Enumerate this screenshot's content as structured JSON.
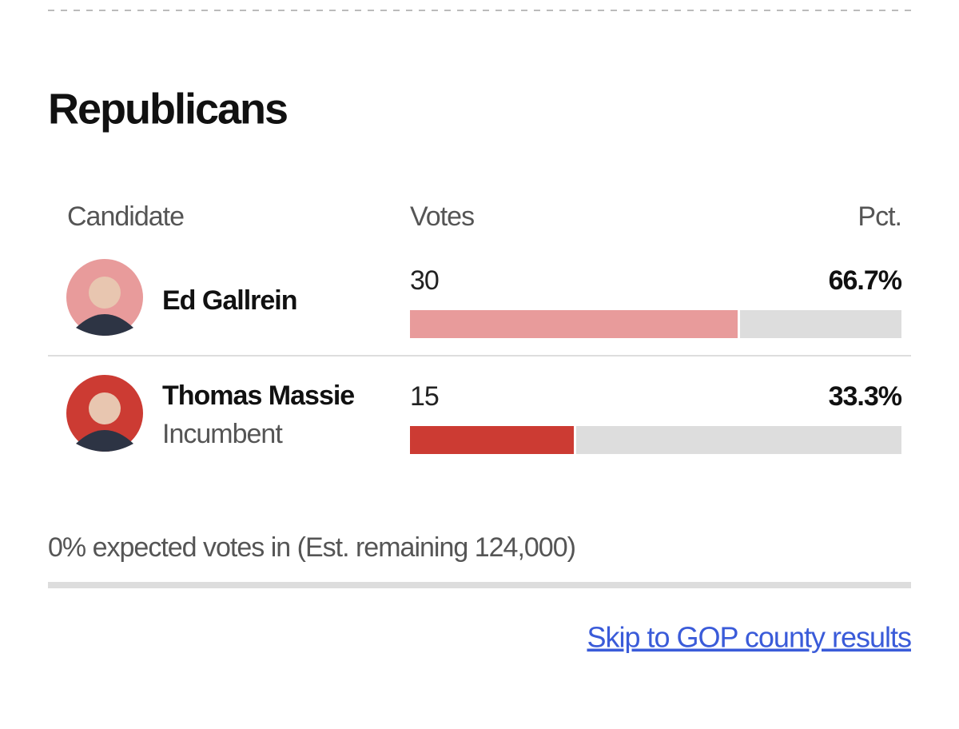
{
  "header": {
    "title": "Republicans"
  },
  "table": {
    "columns": [
      "Candidate",
      "Votes",
      "Pct."
    ],
    "rows": [
      {
        "name": "Ed Gallrein",
        "votes": 30,
        "pct": "66.7%",
        "color": "#e89b9b"
      },
      {
        "name": "Thomas Massie",
        "status": "Incumbent",
        "votes": 15,
        "pct": "33.3%",
        "color": "#cc3b33"
      }
    ]
  },
  "footer": {
    "note": "0% expected votes in (Est. remaining 124,000)",
    "link": "Skip to GOP county results"
  }
}
